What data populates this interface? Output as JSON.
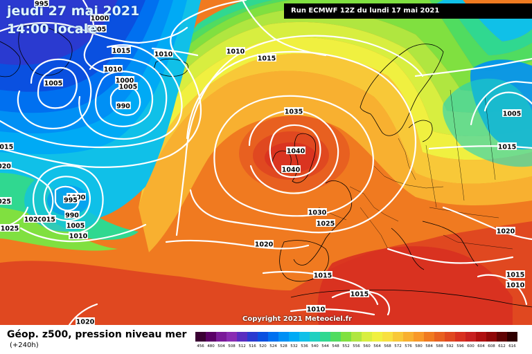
{
  "header": {
    "date": "jeudi 27 mai 2021",
    "time": "14:00 locale",
    "run": "Run ECMWF 12Z du lundi 17 mai 2021"
  },
  "copyright": "Copyright 2021 Meteociel.fr",
  "legend": {
    "title": "Géop. z500, pression niveau mer",
    "subtitle": "(+240h)",
    "scale_values": [
      "456",
      "480",
      "504",
      "508",
      "512",
      "516",
      "520",
      "524",
      "528",
      "532",
      "536",
      "540",
      "544",
      "548",
      "552",
      "556",
      "560",
      "564",
      "568",
      "572",
      "576",
      "580",
      "584",
      "588",
      "592",
      "596",
      "600",
      "604",
      "608",
      "612",
      "616"
    ],
    "scale_colors": [
      "#3a0033",
      "#5a0066",
      "#7a1a99",
      "#8a2cb3",
      "#5a2dc0",
      "#2a3ad0",
      "#0a50e0",
      "#0070f0",
      "#0090f5",
      "#00aaf5",
      "#10c0e8",
      "#20d0c0",
      "#30d890",
      "#50dc60",
      "#80e040",
      "#b0e640",
      "#d8ee40",
      "#f0f040",
      "#f8e040",
      "#f8c838",
      "#f8b030",
      "#f89828",
      "#f07a20",
      "#e86020",
      "#e04820",
      "#d83020",
      "#c82020",
      "#b01010",
      "#900808",
      "#600404",
      "#300000"
    ],
    "label_color": "#000000"
  },
  "isobars": [
    {
      "id": "iso-995",
      "text": "995"
    },
    {
      "id": "iso-1000-a",
      "text": "1000"
    },
    {
      "id": "iso-1005-a",
      "text": "1005"
    },
    {
      "id": "iso-1010-a",
      "text": "1010"
    },
    {
      "id": "iso-1010-b",
      "text": "1010"
    },
    {
      "id": "iso-1015-a",
      "text": "1015"
    },
    {
      "id": "iso-1010-c",
      "text": "1010"
    },
    {
      "id": "iso-1005-b",
      "text": "1005"
    },
    {
      "id": "iso-1000-b",
      "text": "1000"
    },
    {
      "id": "iso-990",
      "text": "990"
    },
    {
      "id": "iso-1005-c",
      "text": "1005"
    },
    {
      "id": "iso-1015-b",
      "text": "1015"
    },
    {
      "id": "iso-1015-c",
      "text": "1015"
    },
    {
      "id": "iso-1020-a",
      "text": "020"
    },
    {
      "id": "iso-1025-a",
      "text": "025"
    },
    {
      "id": "iso-1000-c",
      "text": "1000"
    },
    {
      "id": "iso-995-b",
      "text": "995"
    },
    {
      "id": "iso-990-b",
      "text": "990"
    },
    {
      "id": "iso-1020-b",
      "text": "1020"
    },
    {
      "id": "iso-1015-d",
      "text": "015"
    },
    {
      "id": "iso-1005-d",
      "text": "1005"
    },
    {
      "id": "iso-1010-d",
      "text": "1010"
    },
    {
      "id": "iso-1025-b",
      "text": "1025"
    },
    {
      "id": "iso-1035",
      "text": "1035"
    },
    {
      "id": "iso-1040-a",
      "text": "1040"
    },
    {
      "id": "iso-1040-b",
      "text": "1040"
    },
    {
      "id": "iso-1030",
      "text": "1030"
    },
    {
      "id": "iso-1025-c",
      "text": "1025"
    },
    {
      "id": "iso-1020-c",
      "text": "1020"
    },
    {
      "id": "iso-1015-e",
      "text": "1015"
    },
    {
      "id": "iso-1015-f",
      "text": "1015"
    },
    {
      "id": "iso-1010-e",
      "text": "1010"
    },
    {
      "id": "iso-1020-d",
      "text": "1020"
    },
    {
      "id": "iso-1005-e",
      "text": "1005"
    },
    {
      "id": "iso-1015-g",
      "text": "1015"
    },
    {
      "id": "iso-1020-e",
      "text": "1020"
    },
    {
      "id": "iso-1015-h",
      "text": "1015"
    },
    {
      "id": "iso-1010-f",
      "text": "1010"
    }
  ]
}
